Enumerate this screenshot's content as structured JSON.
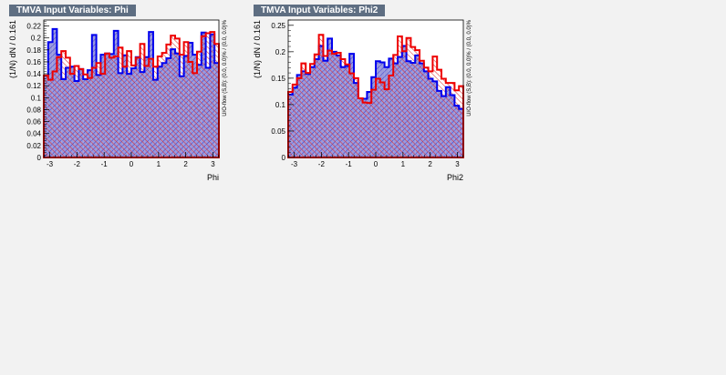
{
  "chart_data": [
    {
      "type": "bar",
      "title": "TMVA Input Variables: Phi",
      "xlabel": "Phi",
      "ylabel": "(1/N) dN / 0.161",
      "side_note": "U/O-flow (S,B): (0.0, 0.0)% / (0.0, 0.0)%",
      "xlim": [
        -3.22,
        3.22
      ],
      "ylim": [
        0,
        0.23
      ],
      "xticks": [
        -3,
        -2,
        -1,
        0,
        1,
        2,
        3
      ],
      "yticks": [
        0,
        0.02,
        0.04,
        0.06,
        0.08,
        0.1,
        0.12,
        0.14,
        0.16,
        0.18,
        0.2,
        0.22
      ],
      "series": [
        {
          "color": "#0000ee",
          "values": [
            0.137,
            0.193,
            0.215,
            0.172,
            0.131,
            0.15,
            0.152,
            0.128,
            0.148,
            0.131,
            0.146,
            0.205,
            0.138,
            0.172,
            0.174,
            0.173,
            0.212,
            0.141,
            0.171,
            0.14,
            0.149,
            0.168,
            0.143,
            0.168,
            0.21,
            0.13,
            0.152,
            0.158,
            0.166,
            0.181,
            0.174,
            0.136,
            0.17,
            0.192,
            0.172,
            0.155,
            0.209,
            0.15,
            0.206,
            0.158
          ]
        },
        {
          "color": "#ee0000",
          "values": [
            0.137,
            0.13,
            0.144,
            0.168,
            0.178,
            0.167,
            0.14,
            0.153,
            0.148,
            0.139,
            0.133,
            0.15,
            0.158,
            0.14,
            0.174,
            0.167,
            0.169,
            0.184,
            0.152,
            0.178,
            0.154,
            0.167,
            0.19,
            0.153,
            0.165,
            0.152,
            0.169,
            0.175,
            0.189,
            0.204,
            0.199,
            0.172,
            0.193,
            0.16,
            0.141,
            0.177,
            0.203,
            0.208,
            0.21,
            0.19
          ]
        }
      ]
    },
    {
      "type": "bar",
      "title": "TMVA Input Variables: Phi2",
      "xlabel": "Phi2",
      "ylabel": "(1/N) dN / 0.161",
      "side_note": "U/O-flow (S,B): (0.0, 0.0)% / (0.0, 0.0)%",
      "xlim": [
        -3.22,
        3.22
      ],
      "ylim": [
        0,
        0.26
      ],
      "xticks": [
        -3,
        -2,
        -1,
        0,
        1,
        2,
        3
      ],
      "yticks": [
        0,
        0.05,
        0.1,
        0.15,
        0.2,
        0.25
      ],
      "series": [
        {
          "color": "#0000ee",
          "values": [
            0.119,
            0.132,
            0.156,
            0.163,
            0.158,
            0.171,
            0.186,
            0.211,
            0.183,
            0.225,
            0.2,
            0.193,
            0.171,
            0.173,
            0.196,
            0.141,
            0.112,
            0.111,
            0.124,
            0.152,
            0.182,
            0.18,
            0.171,
            0.187,
            0.178,
            0.19,
            0.211,
            0.182,
            0.179,
            0.193,
            0.178,
            0.163,
            0.149,
            0.144,
            0.126,
            0.116,
            0.133,
            0.118,
            0.098,
            0.092
          ]
        },
        {
          "color": "#ee0000",
          "values": [
            0.124,
            0.138,
            0.15,
            0.178,
            0.16,
            0.177,
            0.195,
            0.232,
            0.192,
            0.202,
            0.196,
            0.198,
            0.186,
            0.176,
            0.159,
            0.15,
            0.112,
            0.104,
            0.103,
            0.128,
            0.149,
            0.142,
            0.129,
            0.155,
            0.194,
            0.229,
            0.201,
            0.226,
            0.209,
            0.203,
            0.183,
            0.17,
            0.163,
            0.191,
            0.166,
            0.149,
            0.141,
            0.141,
            0.127,
            0.135
          ]
        }
      ]
    }
  ]
}
